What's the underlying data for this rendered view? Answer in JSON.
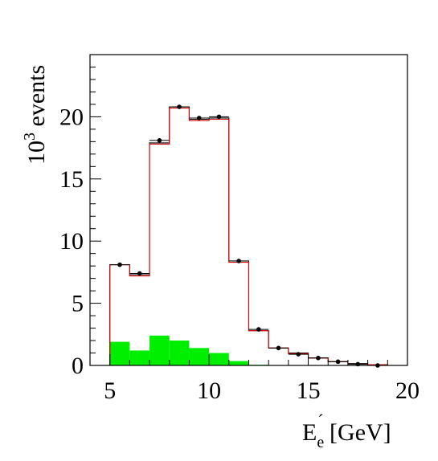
{
  "colors": {
    "background": "#ffffff",
    "axis": "#000000",
    "data_points": "#000000",
    "histogram_black": "#000000",
    "histogram_red": "#e00000",
    "background_fill": "#00ee00"
  },
  "chart_data": {
    "type": "bar",
    "title": "",
    "xlabel": {
      "main": "E",
      "sub": "e",
      "sup": "´",
      "unit": " [GeV]"
    },
    "ylabel": {
      "prefix": "10",
      "exp": "3",
      "suffix": " events"
    },
    "xlim": [
      4,
      20
    ],
    "ylim": [
      0,
      25
    ],
    "x_ticks": [
      5,
      10,
      15,
      20
    ],
    "y_ticks": [
      0,
      5,
      10,
      15,
      20
    ],
    "bin_edges": [
      5,
      6,
      7,
      8,
      9,
      10,
      11,
      12,
      13,
      14,
      15,
      16,
      17,
      18,
      19
    ],
    "series": [
      {
        "kind": "points",
        "x": [
          5.5,
          6.5,
          7.5,
          8.5,
          9.5,
          10.5,
          11.5,
          12.5,
          13.5,
          14.5,
          15.5,
          16.5,
          17.5,
          18.5
        ],
        "values": [
          8.1,
          7.4,
          18.1,
          20.8,
          19.9,
          20.0,
          8.4,
          2.9,
          1.4,
          0.9,
          0.6,
          0.3,
          0.1,
          0.0
        ]
      },
      {
        "kind": "step-black",
        "values": [
          8.1,
          7.3,
          17.9,
          20.8,
          19.8,
          19.9,
          8.4,
          2.8,
          1.4,
          1.0,
          0.6,
          0.3,
          0.15,
          0.05
        ]
      },
      {
        "kind": "step-red",
        "values": [
          8.1,
          7.2,
          17.8,
          20.7,
          19.7,
          19.8,
          8.3,
          2.8,
          1.4,
          0.95,
          0.6,
          0.3,
          0.1,
          0.05
        ]
      },
      {
        "kind": "filled-background",
        "values": [
          1.9,
          1.2,
          2.4,
          2.0,
          1.4,
          1.0,
          0.35,
          0.05,
          0.0,
          0.0,
          0.0,
          0.0,
          0.0,
          0.0
        ]
      }
    ]
  }
}
